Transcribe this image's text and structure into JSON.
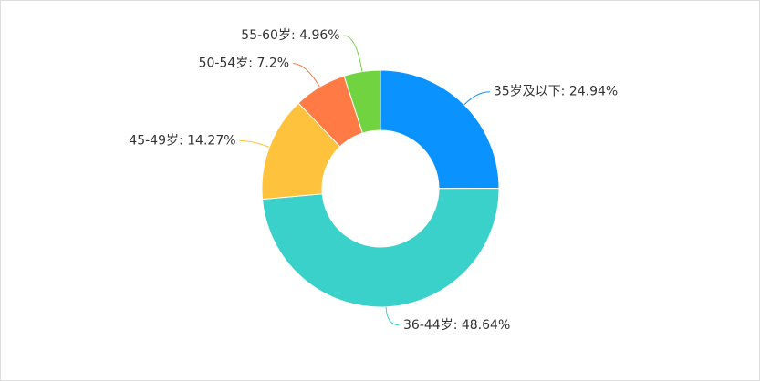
{
  "chart_data": {
    "type": "donut",
    "labels": [
      "35岁及以下: 24.94%",
      "36-44岁: 48.64%",
      "45-49岁: 14.27%",
      "50-54岁: 7.2%",
      "55-60岁: 4.96%"
    ],
    "values": [
      24.94,
      48.64,
      14.27,
      7.2,
      4.96
    ],
    "colors": [
      "#0a92ff",
      "#3ad1cb",
      "#ffc23c",
      "#ff7a45",
      "#71d33f"
    ]
  }
}
